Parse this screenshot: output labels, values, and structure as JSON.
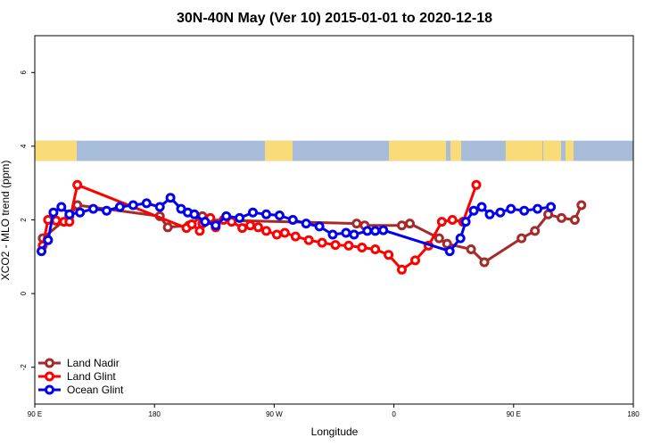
{
  "chart_data": {
    "type": "line",
    "title": "30N-40N May (Ver 10)   2015-01-01 to 2020-12-18",
    "xlabel": "Longitude",
    "ylabel": "XCO2 - MLO trend (ppm)",
    "xlim": [
      90,
      540
    ],
    "ylim": [
      -3,
      7
    ],
    "x_ticks": [
      {
        "value": 90,
        "label": "90 E"
      },
      {
        "value": 180,
        "label": "180"
      },
      {
        "value": 270,
        "label": "90 W"
      },
      {
        "value": 360,
        "label": "0"
      },
      {
        "value": 450,
        "label": "90 E"
      },
      {
        "value": 540,
        "label": "180"
      }
    ],
    "y_ticks": [
      {
        "value": -2,
        "label": "-2"
      },
      {
        "value": 0,
        "label": "0"
      },
      {
        "value": 2,
        "label": "2"
      },
      {
        "value": 4,
        "label": "4"
      },
      {
        "value": 6,
        "label": "6"
      }
    ],
    "map_strip": {
      "ymin": 3.6,
      "ymax": 4.15,
      "ocean_color": "#a7bcd9",
      "land_color": "#f9db79"
    },
    "legend_position": "bottom-left",
    "series": [
      {
        "name": "Land Nadir",
        "color": "#a52a2a",
        "points": [
          [
            96,
            1.5
          ],
          [
            116,
            2.1
          ],
          [
            122,
            2.4
          ],
          [
            184,
            2.1
          ],
          [
            190,
            1.8
          ],
          [
            206,
            1.85
          ],
          [
            216,
            2.1
          ],
          [
            220,
            2.0
          ],
          [
            332,
            1.9
          ],
          [
            338,
            1.85
          ],
          [
            366,
            1.85
          ],
          [
            372,
            1.9
          ],
          [
            394,
            1.5
          ],
          [
            400,
            1.35
          ],
          [
            418,
            1.2
          ],
          [
            428,
            0.85
          ],
          [
            456,
            1.5
          ],
          [
            466,
            1.7
          ],
          [
            476,
            2.15
          ],
          [
            486,
            2.05
          ],
          [
            496,
            2.0
          ],
          [
            501,
            2.4
          ]
        ]
      },
      {
        "name": "Land Glint",
        "color": "#ff0000",
        "points": [
          [
            96,
            1.3
          ],
          [
            100,
            2.0
          ],
          [
            106,
            1.98
          ],
          [
            112,
            1.95
          ],
          [
            116,
            1.95
          ],
          [
            122,
            2.95
          ],
          [
            204,
            1.78
          ],
          [
            208,
            1.88
          ],
          [
            214,
            1.7
          ],
          [
            216,
            1.9
          ],
          [
            222,
            2.05
          ],
          [
            226,
            1.8
          ],
          [
            232,
            2.0
          ],
          [
            238,
            1.95
          ],
          [
            246,
            1.78
          ],
          [
            252,
            1.85
          ],
          [
            258,
            1.8
          ],
          [
            264,
            1.7
          ],
          [
            272,
            1.6
          ],
          [
            278,
            1.65
          ],
          [
            286,
            1.55
          ],
          [
            296,
            1.45
          ],
          [
            306,
            1.38
          ],
          [
            316,
            1.32
          ],
          [
            326,
            1.3
          ],
          [
            336,
            1.25
          ],
          [
            346,
            1.2
          ],
          [
            356,
            1.05
          ],
          [
            366,
            0.65
          ],
          [
            376,
            0.9
          ],
          [
            386,
            1.3
          ],
          [
            396,
            1.95
          ],
          [
            404,
            2.0
          ],
          [
            412,
            1.95
          ],
          [
            422,
            2.95
          ]
        ]
      },
      {
        "name": "Ocean Glint",
        "color": "#0000ee",
        "points": [
          [
            95,
            1.15
          ],
          [
            100,
            1.45
          ],
          [
            104,
            2.2
          ],
          [
            110,
            2.35
          ],
          [
            116,
            2.15
          ],
          [
            124,
            2.2
          ],
          [
            134,
            2.3
          ],
          [
            144,
            2.25
          ],
          [
            154,
            2.35
          ],
          [
            164,
            2.4
          ],
          [
            174,
            2.45
          ],
          [
            184,
            2.35
          ],
          [
            192,
            2.6
          ],
          [
            200,
            2.3
          ],
          [
            205,
            2.2
          ],
          [
            210,
            2.15
          ],
          [
            218,
            1.95
          ],
          [
            226,
            1.85
          ],
          [
            234,
            2.1
          ],
          [
            244,
            2.05
          ],
          [
            254,
            2.2
          ],
          [
            264,
            2.15
          ],
          [
            274,
            2.12
          ],
          [
            284,
            2.0
          ],
          [
            294,
            1.9
          ],
          [
            304,
            1.82
          ],
          [
            314,
            1.6
          ],
          [
            324,
            1.65
          ],
          [
            330,
            1.6
          ],
          [
            340,
            1.7
          ],
          [
            346,
            1.7
          ],
          [
            352,
            1.72
          ],
          [
            402,
            1.15
          ],
          [
            410,
            1.5
          ],
          [
            414,
            1.95
          ],
          [
            420,
            2.25
          ],
          [
            426,
            2.35
          ],
          [
            432,
            2.15
          ],
          [
            440,
            2.2
          ],
          [
            448,
            2.3
          ],
          [
            458,
            2.25
          ],
          [
            468,
            2.3
          ],
          [
            478,
            2.35
          ]
        ]
      }
    ]
  }
}
